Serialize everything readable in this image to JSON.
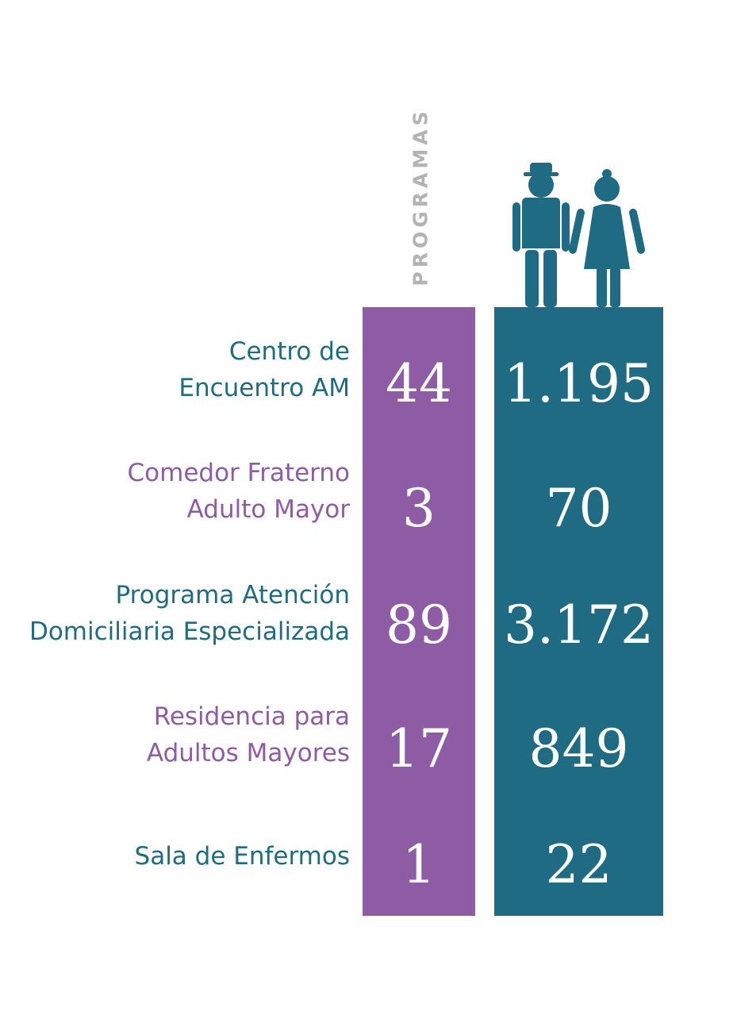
{
  "header": {
    "programs_label": "PROGRAMAS"
  },
  "colors": {
    "purple": "#8d5ca5",
    "teal": "#1f6b83",
    "header_gray": "#b3b3b3"
  },
  "icons": {
    "people": "elderly-couple-icon"
  },
  "rows": [
    {
      "line1": "Centro de",
      "line2": "Encuentro AM",
      "programs": "44",
      "people": "1.195",
      "color": "teal"
    },
    {
      "line1": "Comedor Fraterno",
      "line2": "Adulto Mayor",
      "programs": "3",
      "people": "70",
      "color": "purple"
    },
    {
      "line1": "Programa Atención",
      "line2": "Domiciliaria Especializada",
      "programs": "89",
      "people": "3.172",
      "color": "teal"
    },
    {
      "line1": "Residencia para",
      "line2": "Adultos Mayores",
      "programs": "17",
      "people": "849",
      "color": "purple"
    },
    {
      "line1": "Sala de Enfermos",
      "line2": "",
      "programs": "1",
      "people": "22",
      "color": "teal"
    }
  ]
}
